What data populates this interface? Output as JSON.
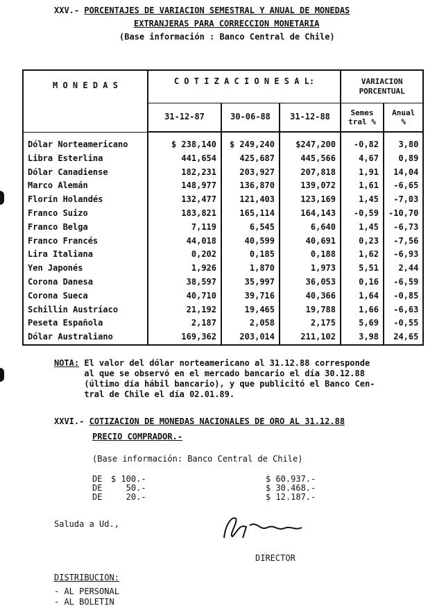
{
  "section_xxv": {
    "number": "XXV.-",
    "title_line1": "PORCENTAJES DE VARIACION SEMESTRAL Y ANUAL DE MONEDAS",
    "title_line2": "EXTRANJERAS PARA CORRECCION MONETARIA",
    "source": "(Base información : Banco Central de Chile)"
  },
  "table": {
    "header_monedas": "M O N E D A S",
    "header_cotizaciones": "C O T I Z A C I O N E S   A L:",
    "header_variacion": "VARIACION PORCENTUAL",
    "dates": [
      "31-12-87",
      "30-06-88",
      "31-12-88"
    ],
    "semestral": "Semes tral %",
    "anual": "Anual %",
    "rows": [
      {
        "moneda": "Dólar Norteamericano",
        "v87": "$ 238,140",
        "v6_88": "$ 249,240",
        "v88": "$247,200",
        "sem": "-0,82",
        "anual": "3,80"
      },
      {
        "moneda": "Libra Esterlina",
        "v87": "441,654",
        "v6_88": "425,687",
        "v88": "445,566",
        "sem": "4,67",
        "anual": "0,89"
      },
      {
        "moneda": "Dólar Canadiense",
        "v87": "182,231",
        "v6_88": "203,927",
        "v88": "207,818",
        "sem": "1,91",
        "anual": "14,04"
      },
      {
        "moneda": "Marco Alemán",
        "v87": "148,977",
        "v6_88": "136,870",
        "v88": "139,072",
        "sem": "1,61",
        "anual": "-6,65"
      },
      {
        "moneda": "Florín Holandés",
        "v87": "132,477",
        "v6_88": "121,403",
        "v88": "123,169",
        "sem": "1,45",
        "anual": "-7,03"
      },
      {
        "moneda": "Franco Suizo",
        "v87": "183,821",
        "v6_88": "165,114",
        "v88": "164,143",
        "sem": "-0,59",
        "anual": "-10,70"
      },
      {
        "moneda": "Franco Belga",
        "v87": "7,119",
        "v6_88": "6,545",
        "v88": "6,640",
        "sem": "1,45",
        "anual": "-6,73"
      },
      {
        "moneda": "Franco Francés",
        "v87": "44,018",
        "v6_88": "40,599",
        "v88": "40,691",
        "sem": "0,23",
        "anual": "-7,56"
      },
      {
        "moneda": "Lira Italiana",
        "v87": "0,202",
        "v6_88": "0,185",
        "v88": "0,188",
        "sem": "1,62",
        "anual": "-6,93"
      },
      {
        "moneda": "Yen Japonés",
        "v87": "1,926",
        "v6_88": "1,870",
        "v88": "1,973",
        "sem": "5,51",
        "anual": "2,44"
      },
      {
        "moneda": "Corona Danesa",
        "v87": "38,597",
        "v6_88": "35,997",
        "v88": "36,053",
        "sem": "0,16",
        "anual": "-6,59"
      },
      {
        "moneda": "Corona Sueca",
        "v87": "40,710",
        "v6_88": "39,716",
        "v88": "40,366",
        "sem": "1,64",
        "anual": "-0,85"
      },
      {
        "moneda": "Schillin Austríaco",
        "v87": "21,192",
        "v6_88": "19,465",
        "v88": "19,788",
        "sem": "1,66",
        "anual": "-6,63"
      },
      {
        "moneda": "Peseta Española",
        "v87": "2,187",
        "v6_88": "2,058",
        "v88": "2,175",
        "sem": "5,69",
        "anual": "-0,55"
      },
      {
        "moneda": "Dólar Australiano",
        "v87": "169,362",
        "v6_88": "203,014",
        "v88": "211,102",
        "sem": "3,98",
        "anual": "24,65"
      }
    ]
  },
  "nota": {
    "label": "NOTA:",
    "lines": [
      "El valor del dólar norteamericano al 31.12.88 corresponde",
      "al que se observó en el mercado bancario el día 30.12.88",
      "(último día hábil bancario), y que publicitó el Banco Cen-",
      "tral de Chile el día 02.01.89."
    ]
  },
  "section_xxvi": {
    "number": "XXVI.-",
    "title_line1": "COTIZACION DE MONEDAS NACIONALES DE ORO AL 31.12.88",
    "title_line2": "PRECIO COMPRADOR.-",
    "source": "(Base información: Banco Central de Chile)",
    "rows": [
      {
        "de": "DE",
        "coin": "$ 100.-",
        "price": "$ 60.937.-"
      },
      {
        "de": "DE",
        "coin": "   50.-",
        "price": "$ 30.468.-"
      },
      {
        "de": "DE",
        "coin": "   20.-",
        "price": "$ 12.187.-"
      }
    ]
  },
  "closing": "Saluda a Ud.,",
  "signature_title": "DIRECTOR",
  "distribucion": {
    "label": "DISTRIBUCION:",
    "items": [
      "- AL PERSONAL",
      "- AL BOLETIN"
    ]
  }
}
